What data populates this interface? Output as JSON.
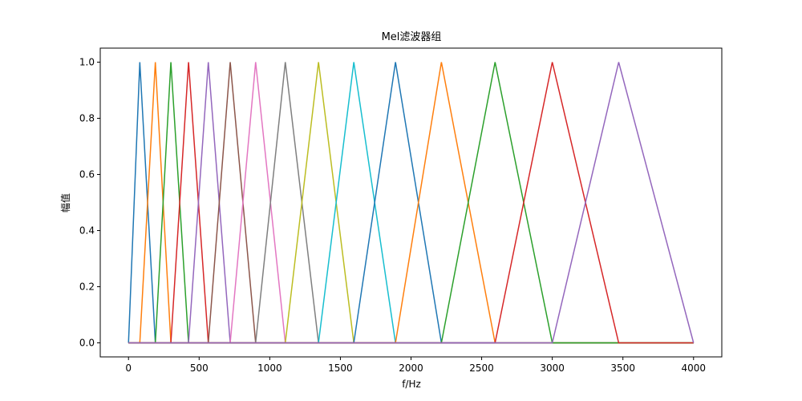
{
  "chart_data": {
    "type": "line",
    "title": "Mel滤波器组",
    "xlabel": "f/Hz",
    "ylabel": "幅值",
    "xlim": [
      -200,
      4200
    ],
    "ylim": [
      -0.05,
      1.05
    ],
    "xticks": [
      0,
      500,
      1000,
      1500,
      2000,
      2500,
      3000,
      3500,
      4000
    ],
    "yticks": [
      0.0,
      0.2,
      0.4,
      0.6,
      0.8,
      1.0
    ],
    "ytick_labels": [
      "0.0",
      "0.2",
      "0.4",
      "0.6",
      "0.8",
      "1.0"
    ],
    "grid": false,
    "legend": "none",
    "x_range": [
      0,
      4000
    ],
    "mel_points_hz": [
      0,
      80,
      190,
      300,
      425,
      565,
      720,
      900,
      1110,
      1345,
      1595,
      1890,
      2215,
      2595,
      3000,
      3470,
      4000
    ],
    "series": [
      {
        "color": "#1f77b4",
        "peak": 80
      },
      {
        "color": "#ff7f0e",
        "peak": 190
      },
      {
        "color": "#2ca02c",
        "peak": 300
      },
      {
        "color": "#d62728",
        "peak": 425
      },
      {
        "color": "#9467bd",
        "peak": 565
      },
      {
        "color": "#8c564b",
        "peak": 720
      },
      {
        "color": "#e377c2",
        "peak": 900
      },
      {
        "color": "#7f7f7f",
        "peak": 1110
      },
      {
        "color": "#bcbd22",
        "peak": 1345
      },
      {
        "color": "#17becf",
        "peak": 1595
      },
      {
        "color": "#1f77b4",
        "peak": 1890
      },
      {
        "color": "#ff7f0e",
        "peak": 2215
      },
      {
        "color": "#2ca02c",
        "peak": 2595
      },
      {
        "color": "#d62728",
        "peak": 3000
      },
      {
        "color": "#9467bd",
        "peak": 3470
      }
    ]
  }
}
